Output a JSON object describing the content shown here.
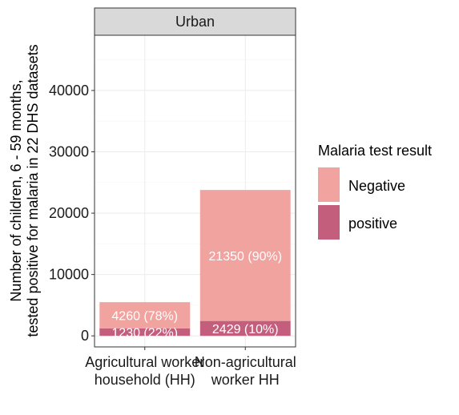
{
  "chart_data": {
    "type": "bar",
    "stacked": true,
    "facet": "Urban",
    "categories": [
      "Agricultural worker household (HH)",
      "Non-agricultural worker HH"
    ],
    "category_tick_lines": [
      [
        "Agricultural worker",
        "household (HH)"
      ],
      [
        "Non-agricultural",
        "worker HH"
      ]
    ],
    "series": [
      {
        "name": "positive",
        "values": [
          1230,
          2429
        ],
        "labels": [
          "1230 (22%)",
          "2429 (10%)"
        ],
        "color": "#c45e7d"
      },
      {
        "name": "Negative",
        "values": [
          4260,
          21350
        ],
        "labels": [
          "4260 (78%)",
          "21350 (90%)"
        ],
        "color": "#f0a39f"
      }
    ],
    "ylabel_lines": [
      "Number of children, 6 - 59 months,",
      "tested positive for malaria in 22 DHS datasets"
    ],
    "xlabel": "",
    "ylim": [
      -1800,
      49000
    ],
    "yticks": [
      0,
      10000,
      20000,
      30000,
      40000
    ],
    "grid": true,
    "legend": {
      "title": "Malaria test result",
      "position": "right",
      "entries": [
        {
          "label": "Negative",
          "color": "#f0a39f"
        },
        {
          "label": "positive",
          "color": "#c45e7d"
        }
      ]
    }
  }
}
